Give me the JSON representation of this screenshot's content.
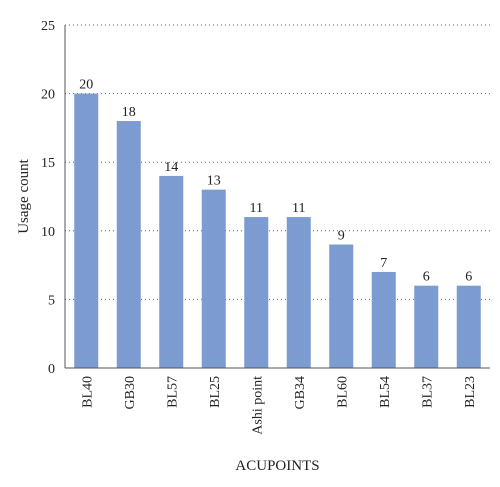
{
  "chart_data": {
    "type": "bar",
    "categories": [
      "BL40",
      "GB30",
      "BL57",
      "BL25",
      "Ashi point",
      "GB34",
      "BL60",
      "BL54",
      "BL37",
      "BL23"
    ],
    "values": [
      20,
      18,
      14,
      13,
      11,
      11,
      9,
      7,
      6,
      6
    ],
    "data_labels": [
      "20",
      "18",
      "14",
      "13",
      "11",
      "11",
      "9",
      "7",
      "6",
      "6"
    ],
    "xlabel": "ACUPOINTS",
    "ylabel": "Usage count",
    "ylim": [
      0,
      25
    ],
    "yticks": [
      0,
      5,
      10,
      15,
      20,
      25
    ],
    "grid": true,
    "legend": "none",
    "bar_color": "#7b9bd1"
  }
}
